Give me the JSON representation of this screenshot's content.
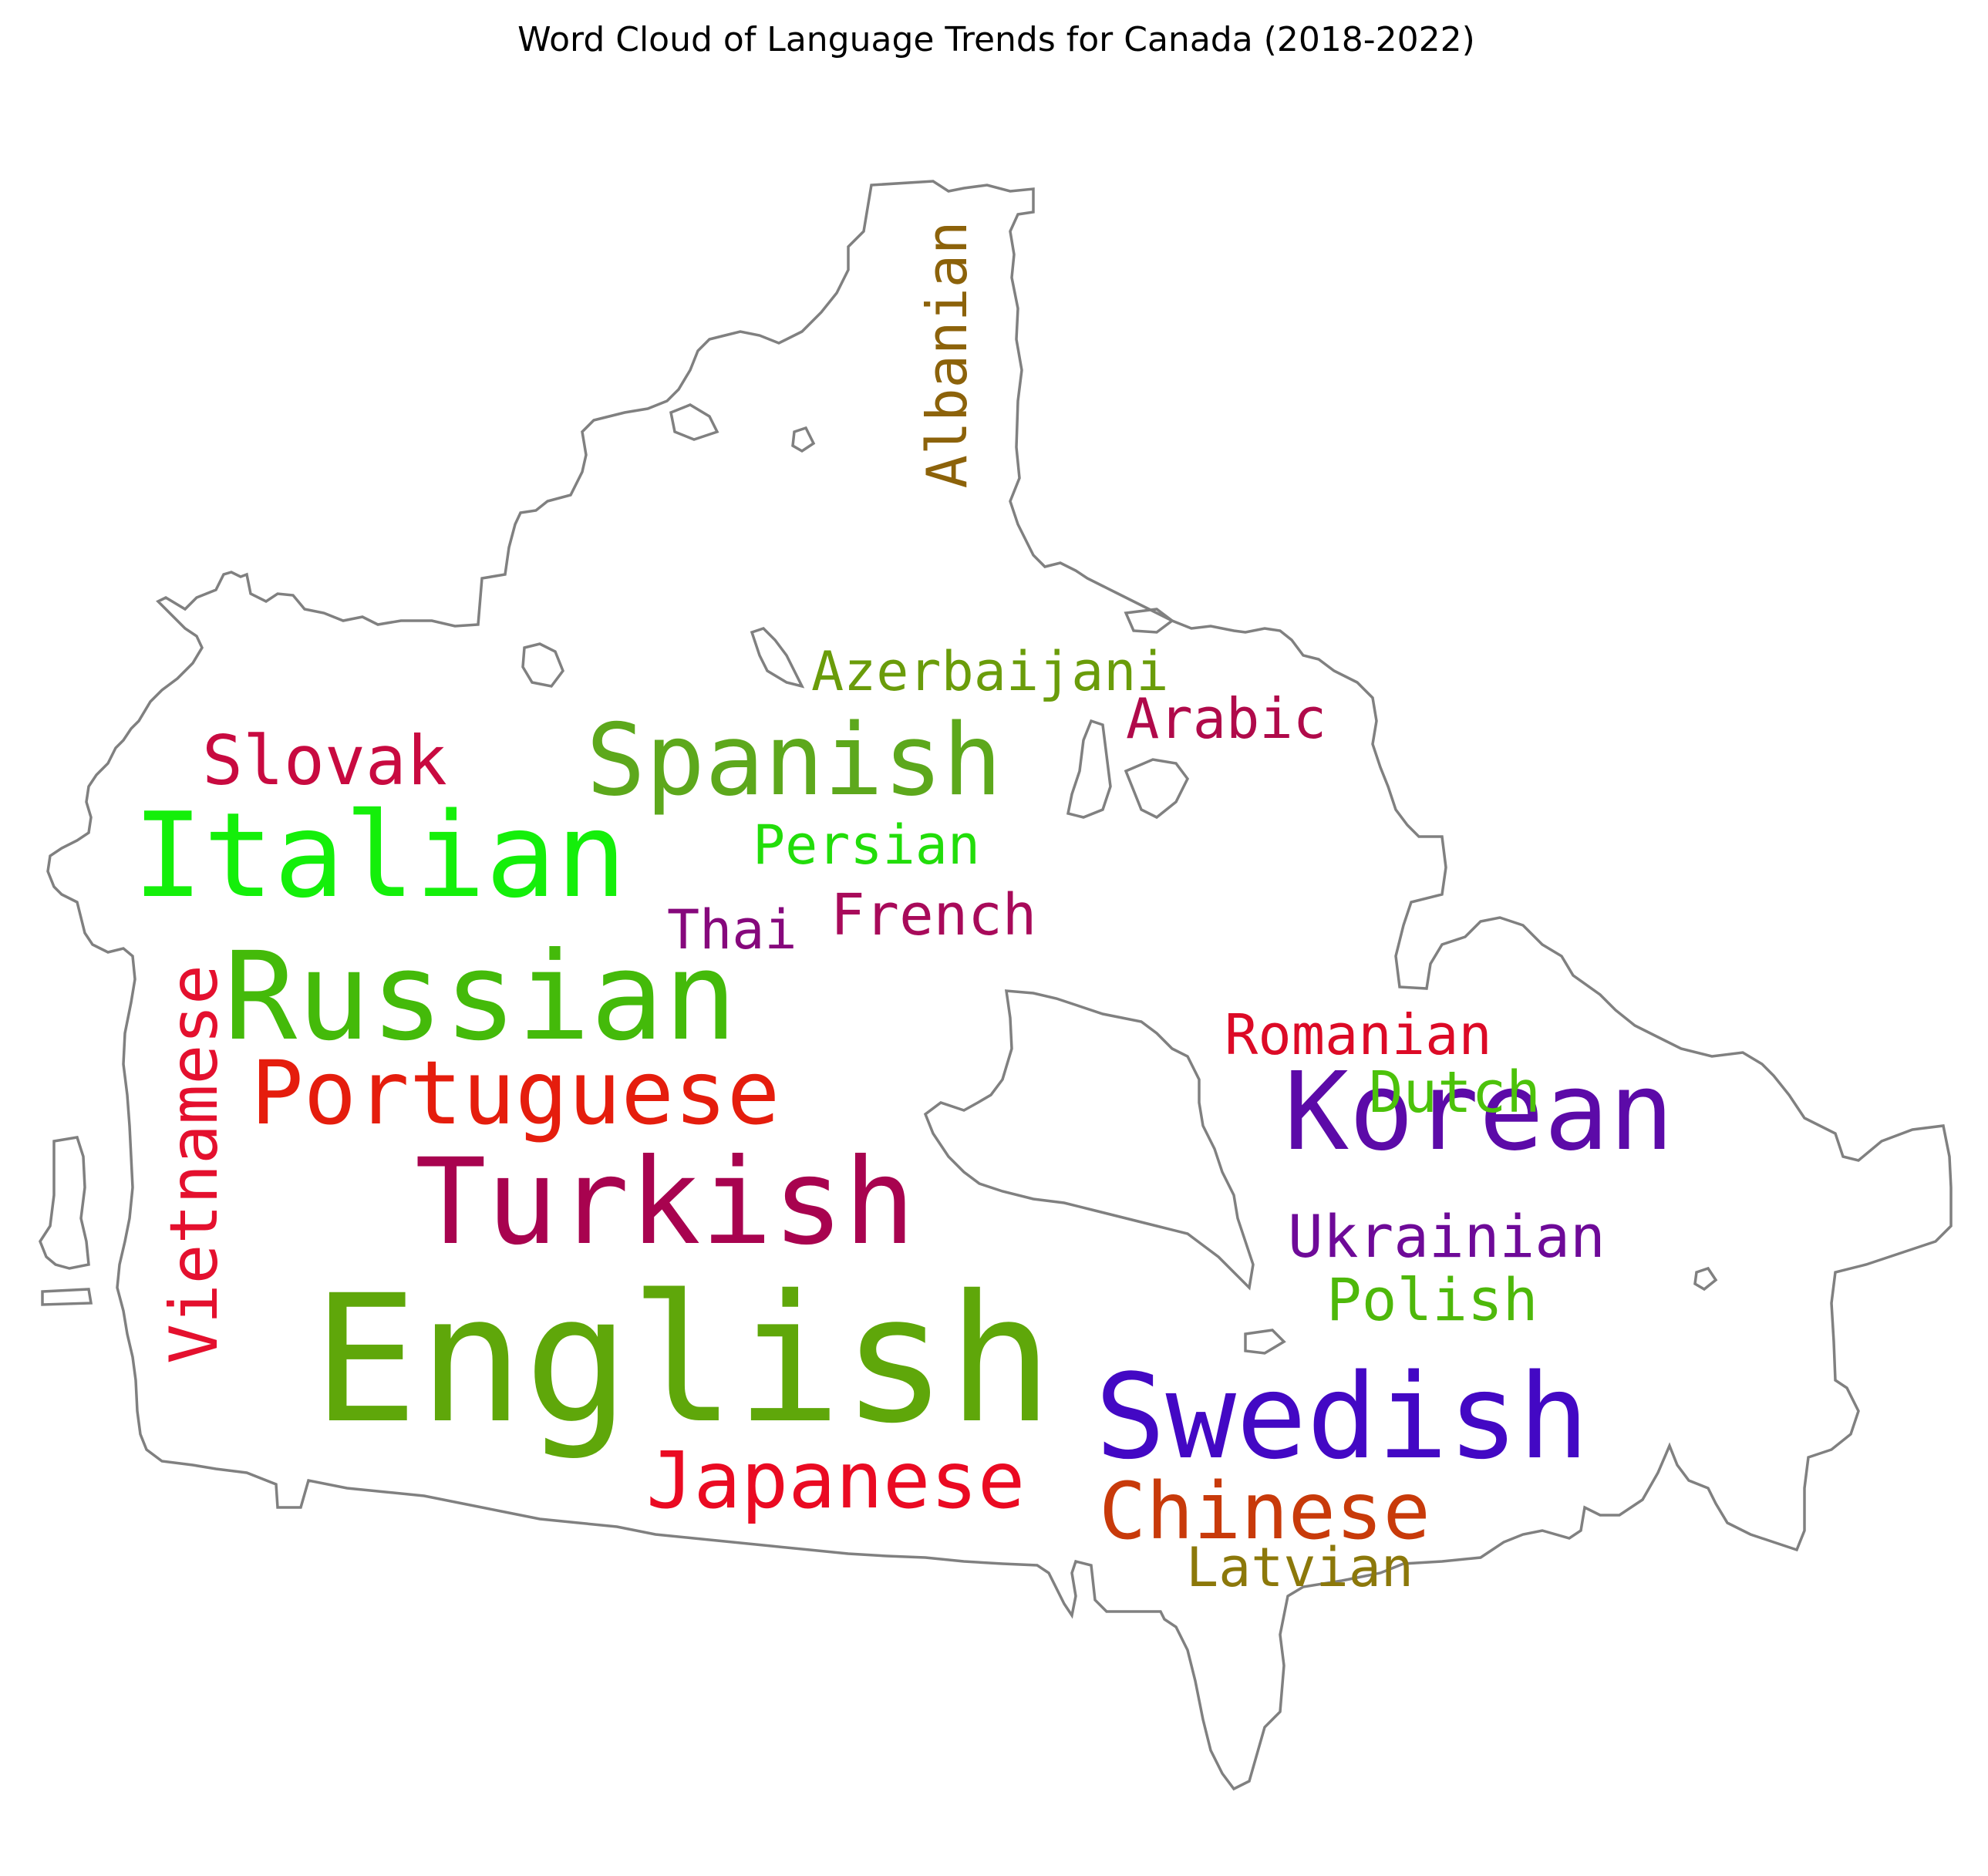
{
  "chart_data": {
    "type": "wordcloud",
    "title": "Word Cloud of Language Trends for Canada (2018-2022)",
    "mask_shape": "Canada",
    "words": [
      {
        "text": "English",
        "color": "#5fa70a",
        "orientation": "horizontal"
      },
      {
        "text": "Russian",
        "color": "#44ba0a",
        "orientation": "horizontal"
      },
      {
        "text": "Italian",
        "color": "#14ef0a",
        "orientation": "horizontal"
      },
      {
        "text": "Turkish",
        "color": "#a8034f",
        "orientation": "horizontal"
      },
      {
        "text": "Swedish",
        "color": "#4308c4",
        "orientation": "horizontal"
      },
      {
        "text": "Korean",
        "color": "#5c0aa8",
        "orientation": "horizontal"
      },
      {
        "text": "Spanish",
        "color": "#5da81c",
        "orientation": "horizontal"
      },
      {
        "text": "Portuguese",
        "color": "#e51d0d",
        "orientation": "horizontal"
      },
      {
        "text": "Japanese",
        "color": "#ea0a22",
        "orientation": "horizontal"
      },
      {
        "text": "Chinese",
        "color": "#c83a0a",
        "orientation": "horizontal"
      },
      {
        "text": "Vietnamese",
        "color": "#e4102e",
        "orientation": "vertical"
      },
      {
        "text": "Slovak",
        "color": "#c80a40",
        "orientation": "horizontal"
      },
      {
        "text": "Albanian",
        "color": "#8c620a",
        "orientation": "vertical"
      },
      {
        "text": "Azerbaijani",
        "color": "#6a9c0a",
        "orientation": "horizontal"
      },
      {
        "text": "Arabic",
        "color": "#b00a4a",
        "orientation": "horizontal"
      },
      {
        "text": "Persian",
        "color": "#22dd0a",
        "orientation": "horizontal"
      },
      {
        "text": "French",
        "color": "#a80a5a",
        "orientation": "horizontal"
      },
      {
        "text": "Thai",
        "color": "#86087c",
        "orientation": "horizontal"
      },
      {
        "text": "Romanian",
        "color": "#dc0a26",
        "orientation": "horizontal"
      },
      {
        "text": "Dutch",
        "color": "#4cc20a",
        "orientation": "horizontal"
      },
      {
        "text": "Ukrainian",
        "color": "#6e0a98",
        "orientation": "horizontal"
      },
      {
        "text": "Polish",
        "color": "#4eb80a",
        "orientation": "horizontal"
      },
      {
        "text": "Latvian",
        "color": "#8c780a",
        "orientation": "horizontal"
      }
    ]
  }
}
